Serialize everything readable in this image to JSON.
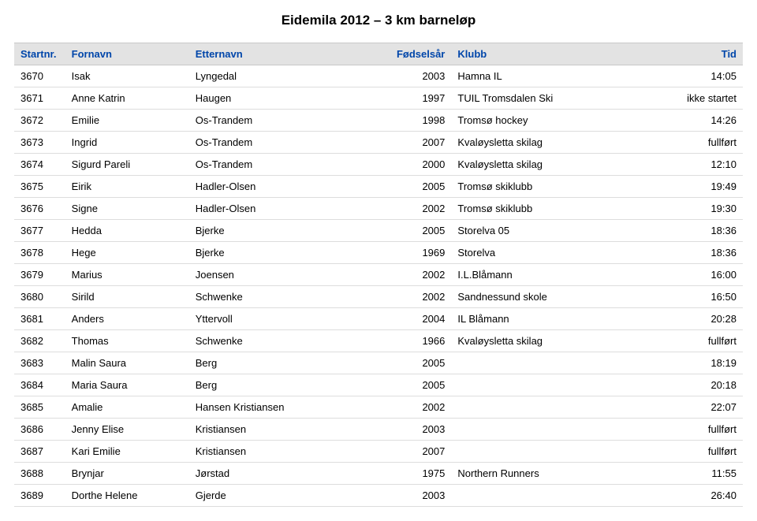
{
  "title": "Eidemila 2012 – 3 km barneløp",
  "columns": [
    "Startnr.",
    "Fornavn",
    "Etternavn",
    "Fødselsår",
    "Klubb",
    "Tid"
  ],
  "rows": [
    {
      "nr": "3670",
      "fornavn": "Isak",
      "etternavn": "Lyngedal",
      "aar": "2003",
      "klubb": "Hamna IL",
      "tid": "14:05"
    },
    {
      "nr": "3671",
      "fornavn": "Anne Katrin",
      "etternavn": "Haugen",
      "aar": "1997",
      "klubb": "TUIL Tromsdalen Ski",
      "tid": "ikke startet"
    },
    {
      "nr": "3672",
      "fornavn": "Emilie",
      "etternavn": "Os-Trandem",
      "aar": "1998",
      "klubb": "Tromsø hockey",
      "tid": "14:26"
    },
    {
      "nr": "3673",
      "fornavn": "Ingrid",
      "etternavn": "Os-Trandem",
      "aar": "2007",
      "klubb": "Kvaløysletta skilag",
      "tid": "fullført"
    },
    {
      "nr": "3674",
      "fornavn": "Sigurd Pareli",
      "etternavn": "Os-Trandem",
      "aar": "2000",
      "klubb": "Kvaløysletta skilag",
      "tid": "12:10"
    },
    {
      "nr": "3675",
      "fornavn": "Eirik",
      "etternavn": "Hadler-Olsen",
      "aar": "2005",
      "klubb": "Tromsø skiklubb",
      "tid": "19:49"
    },
    {
      "nr": "3676",
      "fornavn": "Signe",
      "etternavn": "Hadler-Olsen",
      "aar": "2002",
      "klubb": "Tromsø skiklubb",
      "tid": "19:30"
    },
    {
      "nr": "3677",
      "fornavn": "Hedda",
      "etternavn": "Bjerke",
      "aar": "2005",
      "klubb": "Storelva 05",
      "tid": "18:36"
    },
    {
      "nr": "3678",
      "fornavn": "Hege",
      "etternavn": "Bjerke",
      "aar": "1969",
      "klubb": "Storelva",
      "tid": "18:36"
    },
    {
      "nr": "3679",
      "fornavn": "Marius",
      "etternavn": "Joensen",
      "aar": "2002",
      "klubb": "I.L.Blåmann",
      "tid": "16:00"
    },
    {
      "nr": "3680",
      "fornavn": "Sirild",
      "etternavn": "Schwenke",
      "aar": "2002",
      "klubb": "Sandnessund skole",
      "tid": "16:50"
    },
    {
      "nr": "3681",
      "fornavn": "Anders",
      "etternavn": "Yttervoll",
      "aar": "2004",
      "klubb": "IL Blåmann",
      "tid": "20:28"
    },
    {
      "nr": "3682",
      "fornavn": "Thomas",
      "etternavn": "Schwenke",
      "aar": "1966",
      "klubb": "Kvaløysletta skilag",
      "tid": "fullført"
    },
    {
      "nr": "3683",
      "fornavn": "Malin Saura",
      "etternavn": "Berg",
      "aar": "2005",
      "klubb": "",
      "tid": "18:19"
    },
    {
      "nr": "3684",
      "fornavn": "Maria Saura",
      "etternavn": "Berg",
      "aar": "2005",
      "klubb": "",
      "tid": "20:18"
    },
    {
      "nr": "3685",
      "fornavn": "Amalie",
      "etternavn": "Hansen Kristiansen",
      "aar": "2002",
      "klubb": "",
      "tid": "22:07"
    },
    {
      "nr": "3686",
      "fornavn": "Jenny Elise",
      "etternavn": "Kristiansen",
      "aar": "2003",
      "klubb": "",
      "tid": "fullført"
    },
    {
      "nr": "3687",
      "fornavn": "Kari Emilie",
      "etternavn": "Kristiansen",
      "aar": "2007",
      "klubb": "",
      "tid": "fullført"
    },
    {
      "nr": "3688",
      "fornavn": "Brynjar",
      "etternavn": "Jørstad",
      "aar": "1975",
      "klubb": "Northern Runners",
      "tid": "11:55"
    },
    {
      "nr": "3689",
      "fornavn": "Dorthe Helene",
      "etternavn": "Gjerde",
      "aar": "2003",
      "klubb": "",
      "tid": "26:40"
    }
  ]
}
